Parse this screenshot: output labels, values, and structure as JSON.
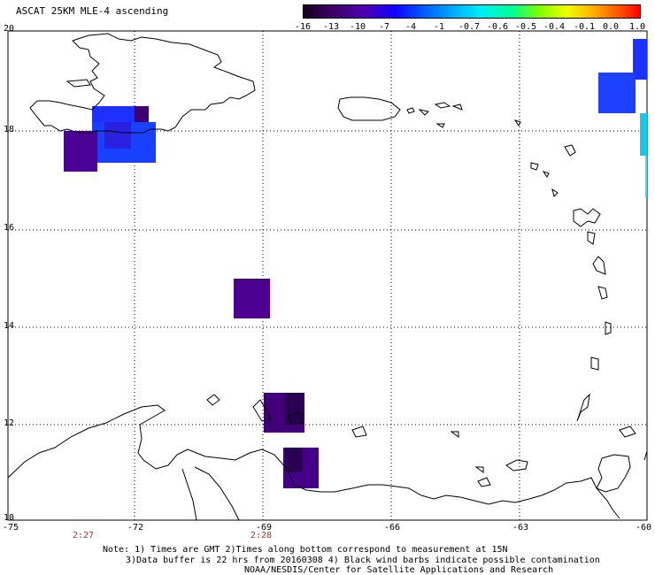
{
  "title": "ASCAT 25KM MLE-4 ascending",
  "colorbar": {
    "labels": [
      "-16",
      "-13",
      "-10",
      "-7",
      "-4",
      "-1",
      "-0.7",
      "-0.6",
      "-0.5",
      "-0.4",
      "-0.1",
      "0.0",
      "1.0"
    ],
    "colors": [
      "#1a0030",
      "#3a005a",
      "#4b00a0",
      "#2000ff",
      "#0050ff",
      "#0098ff",
      "#00d8ff",
      "#00ffd0",
      "#30ff60",
      "#c0ff00",
      "#ffd000",
      "#ff8000",
      "#ff3000",
      "#ff0000"
    ]
  },
  "axes": {
    "lat_labels": [
      "20",
      "18",
      "16",
      "14",
      "12",
      "10"
    ],
    "lon_labels": [
      "-75",
      "-72",
      "-69",
      "-66",
      "-63",
      "-60"
    ]
  },
  "times": [
    "2:27",
    "2:28"
  ],
  "note": {
    "line1": "Note: 1) Times are GMT 2)Times along bottom correspond to measurement at 15N",
    "line2": "3)Data buffer is 22 hrs from 20160308 4) Black wind barbs indicate possible contamination",
    "line3": "NOAA/NESDIS/Center for Satellite Applications and Research"
  },
  "colors": {
    "dark_purple": "#3c0070",
    "purple": "#4b0096",
    "blue": "#1e30ff",
    "cyan": "#10c8f0"
  }
}
